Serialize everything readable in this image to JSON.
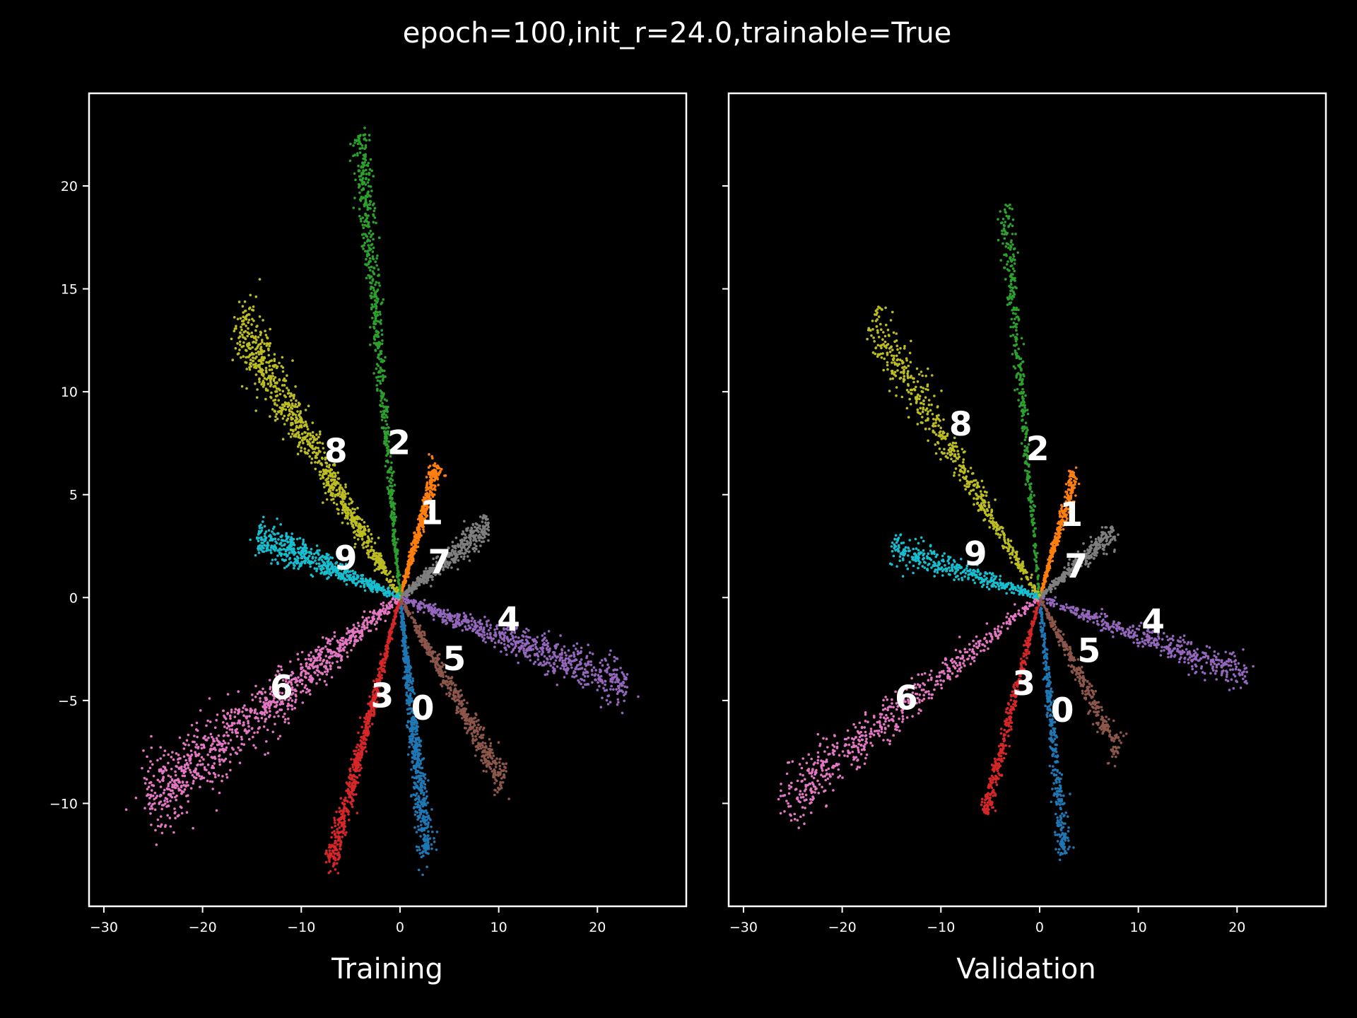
{
  "title": "epoch=100,init_r=24.0,trainable=True",
  "colors": {
    "0": "#1f77b4",
    "1": "#ff7f0e",
    "2": "#2ca02c",
    "3": "#d62728",
    "4": "#9467bd",
    "5": "#8c564b",
    "6": "#e377c2",
    "7": "#7f7f7f",
    "8": "#bcbd22",
    "9": "#17becf"
  },
  "chart_data": [
    {
      "type": "scatter",
      "xlabel": "Training",
      "xlim": [
        -31.5,
        29
      ],
      "ylim": [
        -15,
        24.5
      ],
      "x_ticks": [
        -30,
        -20,
        -10,
        0,
        10,
        20
      ],
      "y_ticks": [
        -10,
        -5,
        0,
        5,
        10,
        15,
        20
      ],
      "x_tick_labels": [
        "−30",
        "−20",
        "−10",
        "0",
        "10",
        "20"
      ],
      "y_tick_labels": [
        "−10",
        "−5",
        "0",
        "5",
        "10",
        "15",
        "20"
      ],
      "series": [
        {
          "name": "0",
          "label_pos": [
            2.3,
            -5.5
          ],
          "end": [
            2.7,
            -12.5
          ],
          "width": 0.9,
          "density": 1.0
        },
        {
          "name": "1",
          "label_pos": [
            3.2,
            4.0
          ],
          "end": [
            3.8,
            6.5
          ],
          "width": 0.6,
          "density": 0.7
        },
        {
          "name": "2",
          "label_pos": [
            -0.1,
            7.4
          ],
          "end": [
            -4.0,
            22.5
          ],
          "width": 0.9,
          "density": 1.0
        },
        {
          "name": "3",
          "label_pos": [
            -1.8,
            -4.9
          ],
          "end": [
            -7.0,
            -13.0
          ],
          "width": 0.7,
          "density": 1.0
        },
        {
          "name": "4",
          "label_pos": [
            11.0,
            -1.2
          ],
          "end": [
            23.0,
            -4.2
          ],
          "width": 1.1,
          "density": 1.1
        },
        {
          "name": "5",
          "label_pos": [
            5.5,
            -3.1
          ],
          "end": [
            10.5,
            -9.0
          ],
          "width": 0.8,
          "density": 0.8
        },
        {
          "name": "6",
          "label_pos": [
            -12.0,
            -4.5
          ],
          "end": [
            -25.5,
            -10.0
          ],
          "width": 2.0,
          "density": 1.6
        },
        {
          "name": "7",
          "label_pos": [
            4.0,
            1.6
          ],
          "end": [
            9.0,
            3.5
          ],
          "width": 0.8,
          "density": 0.7
        },
        {
          "name": "8",
          "label_pos": [
            -6.5,
            7.0
          ],
          "end": [
            -16.5,
            13.5
          ],
          "width": 1.6,
          "density": 1.5
        },
        {
          "name": "9",
          "label_pos": [
            -5.5,
            1.8
          ],
          "end": [
            -14.5,
            3.0
          ],
          "width": 0.9,
          "density": 0.9
        }
      ]
    },
    {
      "type": "scatter",
      "xlabel": "Validation",
      "xlim": [
        -31.5,
        29
      ],
      "ylim": [
        -15,
        24.5
      ],
      "x_ticks": [
        -30,
        -20,
        -10,
        0,
        10,
        20
      ],
      "y_ticks": [
        -10,
        -5,
        0,
        5,
        10,
        15,
        20
      ],
      "x_tick_labels": [
        "−30",
        "−20",
        "−10",
        "0",
        "10",
        "20"
      ],
      "y_tick_labels": [],
      "series": [
        {
          "name": "0",
          "label_pos": [
            2.3,
            -5.6
          ],
          "end": [
            2.5,
            -12.5
          ],
          "width": 0.7,
          "density": 0.6
        },
        {
          "name": "1",
          "label_pos": [
            3.2,
            3.9
          ],
          "end": [
            3.6,
            6.0
          ],
          "width": 0.5,
          "density": 0.5
        },
        {
          "name": "2",
          "label_pos": [
            -0.2,
            7.1
          ],
          "end": [
            -3.5,
            19.0
          ],
          "width": 0.7,
          "density": 0.6
        },
        {
          "name": "3",
          "label_pos": [
            -1.6,
            -4.3
          ],
          "end": [
            -5.5,
            -10.5
          ],
          "width": 0.6,
          "density": 0.6
        },
        {
          "name": "4",
          "label_pos": [
            11.5,
            -1.3
          ],
          "end": [
            21.0,
            -3.8
          ],
          "width": 0.9,
          "density": 0.7
        },
        {
          "name": "5",
          "label_pos": [
            5.0,
            -2.7
          ],
          "end": [
            8.0,
            -7.5
          ],
          "width": 0.7,
          "density": 0.5
        },
        {
          "name": "6",
          "label_pos": [
            -13.5,
            -5.0
          ],
          "end": [
            -26.0,
            -10.0
          ],
          "width": 1.5,
          "density": 0.9
        },
        {
          "name": "7",
          "label_pos": [
            3.7,
            1.4
          ],
          "end": [
            7.5,
            3.2
          ],
          "width": 0.6,
          "density": 0.5
        },
        {
          "name": "8",
          "label_pos": [
            -8.0,
            8.3
          ],
          "end": [
            -17.0,
            13.5
          ],
          "width": 1.3,
          "density": 0.9
        },
        {
          "name": "9",
          "label_pos": [
            -6.5,
            2.0
          ],
          "end": [
            -15.0,
            2.5
          ],
          "width": 0.8,
          "density": 0.6
        }
      ]
    }
  ]
}
